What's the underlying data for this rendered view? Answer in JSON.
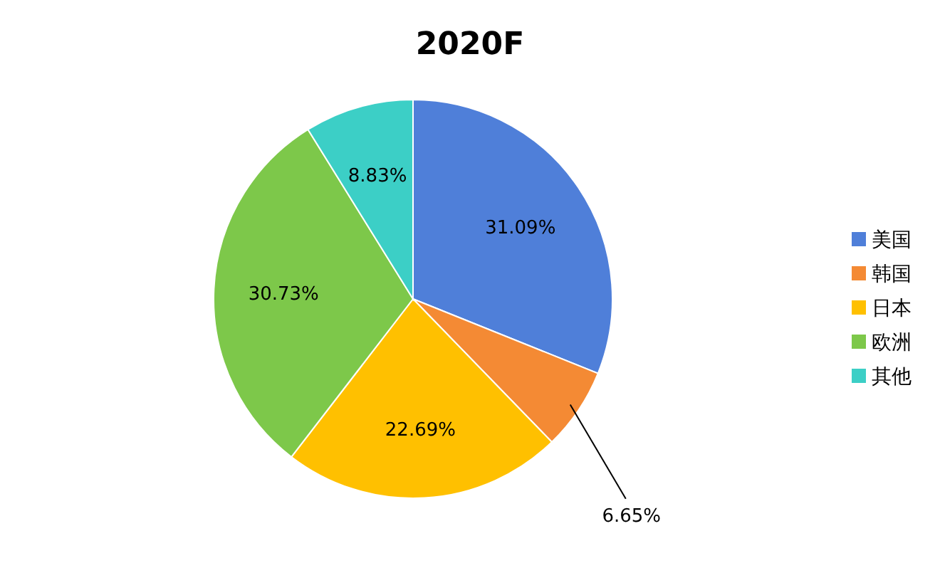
{
  "chart_data": {
    "type": "pie",
    "title": "2020F",
    "categories": [
      "美国",
      "韩国",
      "日本",
      "欧洲",
      "其他"
    ],
    "values": [
      31.09,
      6.65,
      22.69,
      30.73,
      8.83
    ],
    "colors": [
      "#4f7fd9",
      "#f48a34",
      "#ffc000",
      "#7dc84a",
      "#3ccfc6"
    ],
    "value_labels": [
      "31.09%",
      "6.65%",
      "22.69%",
      "30.73%",
      "8.83%"
    ],
    "legend": "right"
  }
}
